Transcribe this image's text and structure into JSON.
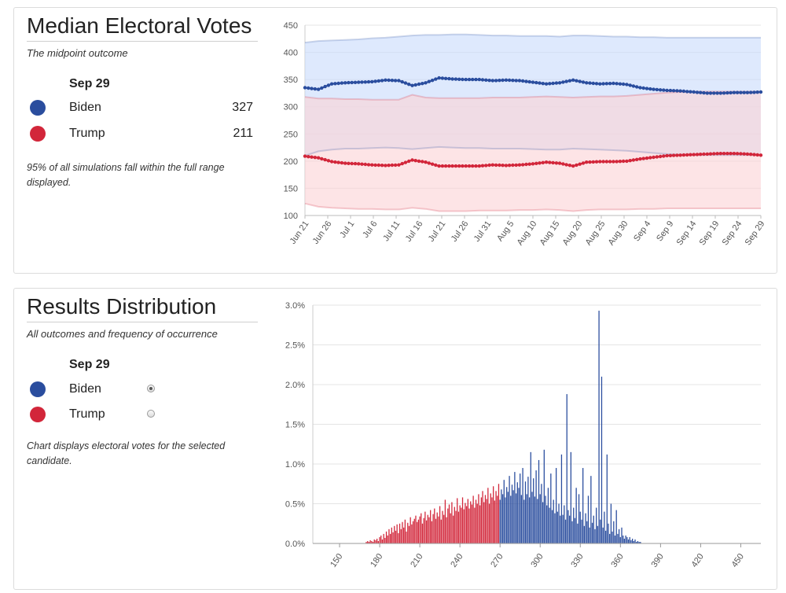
{
  "median_panel": {
    "title": "Median Electoral Votes",
    "subtitle": "The midpoint outcome",
    "date": "Sep 29",
    "candidates": [
      {
        "name": "Biden",
        "value": "327",
        "color": "#2a4d9e"
      },
      {
        "name": "Trump",
        "value": "211",
        "color": "#d2263a"
      }
    ],
    "note": "95% of all simulations fall within the full range displayed."
  },
  "distribution_panel": {
    "title": "Results Distribution",
    "subtitle": "All outcomes and frequency of occurrence",
    "date": "Sep 29",
    "candidates": [
      {
        "name": "Biden",
        "selected": true,
        "color": "#2a4d9e"
      },
      {
        "name": "Trump",
        "selected": false,
        "color": "#d2263a"
      }
    ],
    "note": "Chart displays electoral votes for the selected candidate."
  },
  "chart_data": [
    {
      "type": "line",
      "ylim": [
        100,
        450
      ],
      "yticks": [
        100,
        150,
        200,
        250,
        300,
        350,
        400,
        450
      ],
      "x_tick_labels": [
        "Jun 21",
        "Jun 26",
        "Jul 1",
        "Jul 6",
        "Jul 11",
        "Jul 16",
        "Jul 21",
        "Jul 26",
        "Jul 31",
        "Aug 5",
        "Aug 10",
        "Aug 15",
        "Aug 20",
        "Aug 25",
        "Aug 30",
        "Sep 4",
        "Sep 9",
        "Sep 14",
        "Sep 19",
        "Sep 24",
        "Sep 29"
      ],
      "grid": true,
      "series": [
        {
          "name": "Biden",
          "color": "#2a4d9e",
          "band_color": "#c9dcfb",
          "median": [
            335,
            332,
            342,
            344,
            345,
            346,
            349,
            348,
            339,
            344,
            353,
            351,
            350,
            350,
            348,
            349,
            348,
            345,
            342,
            344,
            349,
            344,
            342,
            343,
            341,
            335,
            332,
            330,
            329,
            327,
            325,
            325,
            326,
            326,
            327
          ],
          "upper": [
            418,
            421,
            422,
            423,
            424,
            426,
            427,
            429,
            431,
            432,
            432,
            433,
            433,
            432,
            431,
            431,
            430,
            430,
            430,
            429,
            431,
            431,
            430,
            429,
            429,
            428,
            428,
            427,
            427,
            427,
            427,
            427,
            427,
            427,
            427
          ],
          "lower": [
            210,
            218,
            221,
            223,
            223,
            224,
            225,
            224,
            222,
            224,
            226,
            225,
            224,
            224,
            223,
            223,
            223,
            222,
            221,
            221,
            223,
            222,
            221,
            220,
            219,
            217,
            215,
            213,
            212,
            211,
            211,
            211,
            211,
            211,
            211
          ]
        },
        {
          "name": "Trump",
          "color": "#d2263a",
          "band_color": "#fbd3d7",
          "median": [
            209,
            206,
            199,
            196,
            195,
            193,
            192,
            193,
            202,
            198,
            191,
            191,
            191,
            191,
            193,
            192,
            193,
            195,
            198,
            196,
            191,
            198,
            199,
            199,
            200,
            204,
            207,
            210,
            211,
            212,
            213,
            214,
            214,
            213,
            211
          ],
          "upper": [
            318,
            315,
            315,
            314,
            314,
            313,
            313,
            313,
            322,
            317,
            316,
            316,
            316,
            316,
            317,
            317,
            317,
            318,
            319,
            318,
            317,
            318,
            319,
            319,
            320,
            322,
            324,
            326,
            327,
            328,
            328,
            328,
            328,
            328,
            328
          ],
          "lower": [
            122,
            116,
            114,
            113,
            112,
            112,
            111,
            111,
            114,
            112,
            108,
            108,
            108,
            109,
            109,
            109,
            110,
            110,
            111,
            110,
            108,
            110,
            111,
            111,
            111,
            112,
            112,
            113,
            113,
            113,
            113,
            113,
            113,
            113,
            113
          ]
        }
      ]
    },
    {
      "type": "bar",
      "candidate": "Biden",
      "xlim": [
        130,
        465
      ],
      "xticks": [
        150,
        180,
        210,
        240,
        270,
        300,
        330,
        360,
        390,
        420,
        450
      ],
      "ylim": [
        0,
        3.0
      ],
      "yticks": [
        "0.0%",
        "0.5%",
        "1.0%",
        "1.5%",
        "2.0%",
        "2.5%",
        "3.0%"
      ],
      "win_threshold": 270,
      "colors": {
        "lose": "#d2263a",
        "win": "#2a4d9e"
      },
      "grid": true,
      "values_start_ev": 170,
      "values_percent": [
        0.02,
        0.03,
        0.02,
        0.04,
        0.03,
        0.02,
        0.05,
        0.04,
        0.06,
        0.03,
        0.08,
        0.1,
        0.05,
        0.12,
        0.07,
        0.15,
        0.1,
        0.18,
        0.12,
        0.2,
        0.14,
        0.22,
        0.16,
        0.24,
        0.13,
        0.25,
        0.18,
        0.27,
        0.2,
        0.3,
        0.15,
        0.26,
        0.22,
        0.33,
        0.24,
        0.28,
        0.31,
        0.35,
        0.27,
        0.3,
        0.34,
        0.38,
        0.25,
        0.32,
        0.4,
        0.29,
        0.36,
        0.33,
        0.42,
        0.28,
        0.37,
        0.44,
        0.31,
        0.39,
        0.34,
        0.47,
        0.3,
        0.41,
        0.36,
        0.55,
        0.33,
        0.44,
        0.49,
        0.38,
        0.52,
        0.35,
        0.46,
        0.41,
        0.57,
        0.4,
        0.48,
        0.45,
        0.58,
        0.43,
        0.51,
        0.47,
        0.56,
        0.44,
        0.53,
        0.49,
        0.6,
        0.45,
        0.55,
        0.5,
        0.62,
        0.48,
        0.58,
        0.66,
        0.52,
        0.61,
        0.56,
        0.7,
        0.5,
        0.63,
        0.58,
        0.72,
        0.54,
        0.66,
        0.6,
        0.75,
        0.55,
        0.68,
        0.62,
        0.8,
        0.58,
        0.71,
        0.65,
        0.85,
        0.6,
        0.74,
        0.67,
        0.9,
        0.63,
        0.77,
        0.7,
        0.88,
        0.61,
        0.95,
        0.55,
        0.78,
        0.62,
        0.84,
        0.58,
        1.15,
        0.65,
        0.82,
        0.59,
        0.92,
        0.56,
        1.05,
        0.62,
        0.75,
        0.52,
        1.18,
        0.6,
        0.48,
        0.7,
        0.45,
        0.88,
        0.42,
        0.55,
        0.38,
        0.95,
        0.4,
        0.5,
        0.35,
        1.12,
        0.36,
        0.48,
        0.3,
        1.88,
        0.42,
        0.35,
        1.15,
        0.28,
        0.45,
        0.32,
        0.7,
        0.25,
        0.62,
        0.4,
        0.3,
        0.95,
        0.22,
        0.38,
        0.28,
        0.6,
        0.2,
        0.85,
        0.26,
        0.35,
        0.18,
        0.45,
        0.22,
        2.93,
        0.3,
        2.1,
        0.2,
        0.4,
        0.16,
        1.12,
        0.25,
        0.12,
        0.5,
        0.15,
        0.28,
        0.1,
        0.42,
        0.12,
        0.18,
        0.08,
        0.2,
        0.1,
        0.06,
        0.1,
        0.08,
        0.05,
        0.08,
        0.04,
        0.06,
        0.03,
        0.05,
        0.02,
        0.03,
        0.02,
        0.02
      ]
    }
  ]
}
